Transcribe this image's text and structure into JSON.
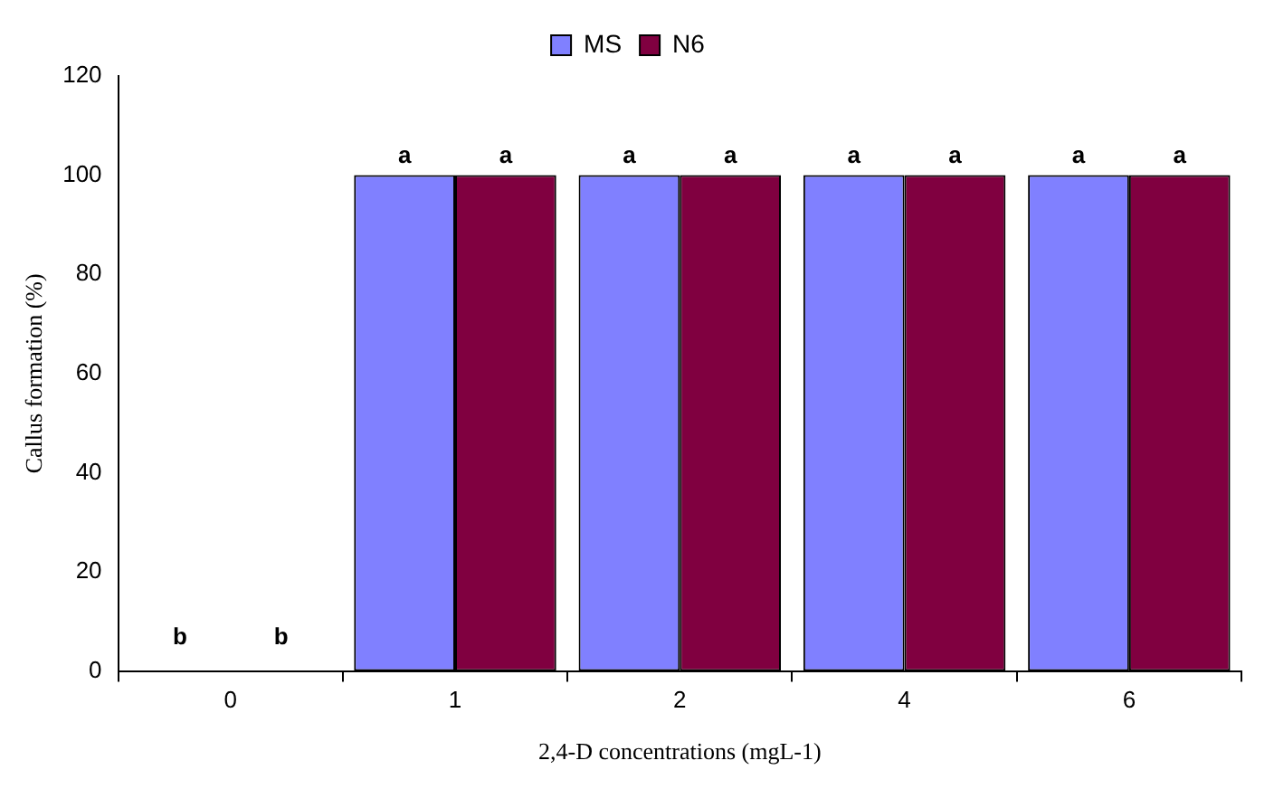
{
  "chart_data": {
    "type": "bar",
    "xlabel": "2,4-D concentrations (mgL-1)",
    "ylabel": "Callus formation (%)",
    "categories": [
      "0",
      "1",
      "2",
      "4",
      "6"
    ],
    "series": [
      {
        "name": "MS",
        "color": "#8080ff",
        "values": [
          0,
          100,
          100,
          100,
          100
        ],
        "value_labels": [
          null,
          "a",
          "a",
          "a",
          "a"
        ]
      },
      {
        "name": "N6",
        "color": "#800040",
        "values": [
          0,
          100,
          100,
          100,
          100
        ],
        "value_labels": [
          null,
          "a",
          "a",
          "a",
          "a"
        ]
      }
    ],
    "annotations": [
      {
        "text": "b",
        "x": "0",
        "y": 0
      },
      {
        "text": "b",
        "x": "0",
        "y": 0
      }
    ],
    "ylim": [
      0,
      120
    ],
    "yticks": [
      0,
      20,
      40,
      60,
      80,
      100,
      120
    ],
    "grid": false,
    "legend": "top"
  }
}
